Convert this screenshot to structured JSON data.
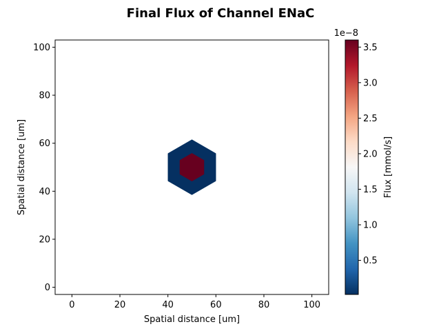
{
  "chart_data": {
    "type": "heatmap",
    "title": "Final Flux of Channel ENaC",
    "xlabel": "Spatial distance [um]",
    "ylabel": "Spatial distance [um]",
    "xlim": [
      -7,
      107
    ],
    "ylim": [
      -3,
      103
    ],
    "xticks": [
      0,
      20,
      40,
      60,
      80,
      100
    ],
    "yticks": [
      0,
      20,
      40,
      60,
      80,
      100
    ],
    "grid": false,
    "cells": [
      {
        "name": "outer-hexagon",
        "center": [
          50,
          50
        ],
        "circumradius": 11.5,
        "flux": 2e-10,
        "color": "#053061"
      },
      {
        "name": "inner-hexagon",
        "center": [
          50,
          50
        ],
        "circumradius": 5.8,
        "flux": 3.6e-08,
        "color": "#67001f"
      }
    ],
    "colorbar": {
      "label": "Flux [mmol/s]",
      "offset_text": "1e−8",
      "min": 0.02,
      "max": 3.6,
      "ticks": [
        0.5,
        1.0,
        1.5,
        2.0,
        2.5,
        3.0,
        3.5
      ],
      "tick_labels": [
        "0.5",
        "1.0",
        "1.5",
        "2.0",
        "2.5",
        "3.0",
        "3.5"
      ],
      "colormap": "RdBu_r",
      "colormap_stops": [
        "#053061",
        "#2166ac",
        "#4393c3",
        "#92c5de",
        "#d1e5f0",
        "#f7f7f7",
        "#fddbc7",
        "#f4a582",
        "#d6604d",
        "#b2182b",
        "#67001f"
      ]
    }
  }
}
